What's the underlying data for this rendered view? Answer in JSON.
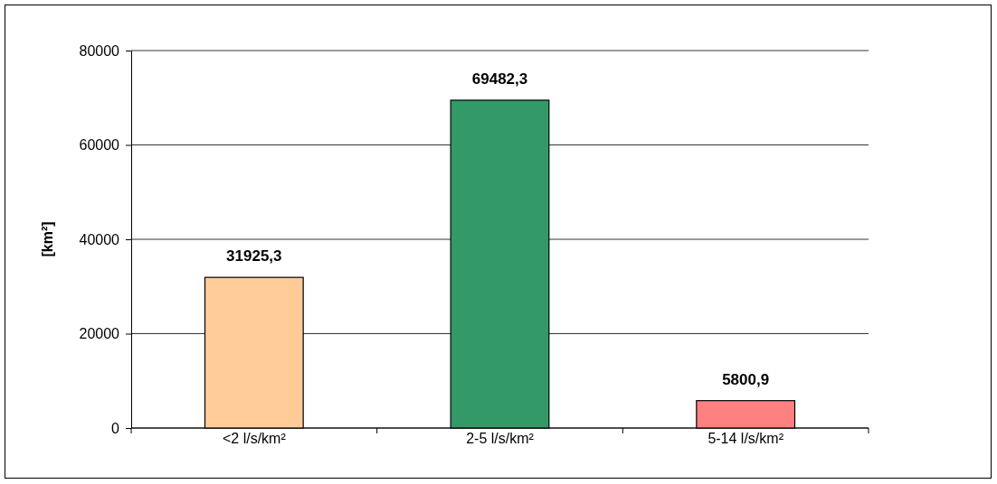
{
  "chart_data": {
    "type": "bar",
    "ylabel": "[km²]",
    "categories": [
      "<2 l/s/km²",
      "2-5 l/s/km²",
      "5-14 l/s/km²"
    ],
    "values": [
      31925.3,
      69482.3,
      5800.9
    ],
    "colors": [
      "#ffcc99",
      "#339966",
      "#ff8080"
    ],
    "value_labels": [
      "31925,3",
      "69482,3",
      "5800,9"
    ],
    "ylim": [
      0,
      80000
    ],
    "yticks": [
      0,
      20000,
      40000,
      60000,
      80000
    ],
    "grid": "y"
  }
}
